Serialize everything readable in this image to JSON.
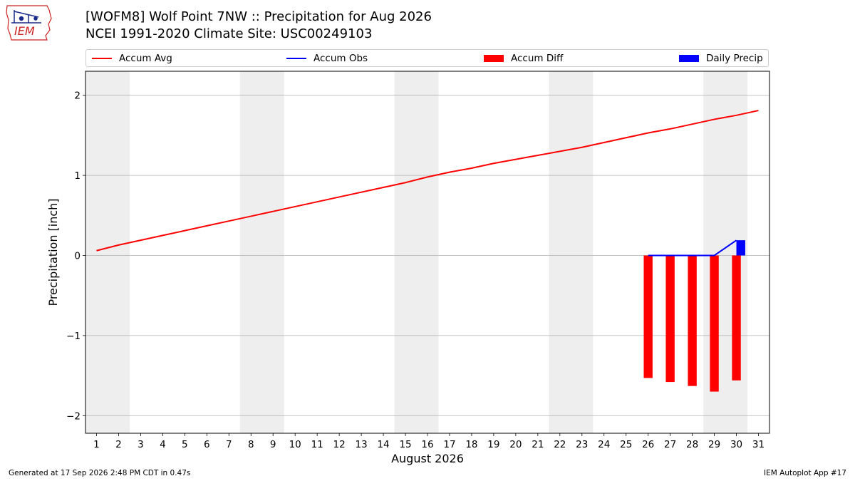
{
  "header": {
    "title_line1": "[WOFM8] Wolf Point 7NW :: Precipitation for Aug 2026",
    "title_line2": "NCEI 1991-2020 Climate Site: USC00249103",
    "logo_text": "IEM"
  },
  "footer": {
    "generated": "Generated at 17 Sep 2026 2:48 PM CDT in 0.47s",
    "app": "IEM Autoplot App #17"
  },
  "colors": {
    "avg": "#ff0000",
    "obs": "#0000ff",
    "diff": "#ff0000",
    "daily": "#0000ff",
    "weekend_shade": "#eeeeee",
    "grid": "#b0b0b0"
  },
  "chart_data": {
    "type": "line",
    "xlabel": "August 2026",
    "ylabel": "Precipitation [inch]",
    "xlim": [
      0.5,
      31.5
    ],
    "ylim": [
      -2.22,
      2.3
    ],
    "yticks": [
      -2,
      -1,
      0,
      1,
      2
    ],
    "ytick_labels": [
      "−2",
      "−1",
      "0",
      "1",
      "2"
    ],
    "xticks": [
      1,
      2,
      3,
      4,
      5,
      6,
      7,
      8,
      9,
      10,
      11,
      12,
      13,
      14,
      15,
      16,
      17,
      18,
      19,
      20,
      21,
      22,
      23,
      24,
      25,
      26,
      27,
      28,
      29,
      30,
      31
    ],
    "grid": "y",
    "legend": {
      "placement": "top",
      "entries": [
        "Accum Avg",
        "Accum Obs",
        "Accum Diff",
        "Daily Precip"
      ]
    },
    "shaded_day_ranges": [
      [
        0.5,
        2.5
      ],
      [
        7.5,
        9.5
      ],
      [
        14.5,
        16.5
      ],
      [
        21.5,
        23.5
      ],
      [
        28.5,
        30.5
      ]
    ],
    "series": [
      {
        "name": "Accum Avg",
        "type": "line",
        "x": [
          1,
          2,
          3,
          4,
          5,
          6,
          7,
          8,
          9,
          10,
          11,
          12,
          13,
          14,
          15,
          16,
          17,
          18,
          19,
          20,
          21,
          22,
          23,
          24,
          25,
          26,
          27,
          28,
          29,
          30,
          31
        ],
        "values": [
          0.06,
          0.13,
          0.19,
          0.25,
          0.31,
          0.37,
          0.43,
          0.49,
          0.55,
          0.61,
          0.67,
          0.73,
          0.79,
          0.85,
          0.91,
          0.98,
          1.04,
          1.09,
          1.15,
          1.2,
          1.25,
          1.3,
          1.35,
          1.41,
          1.47,
          1.53,
          1.58,
          1.64,
          1.7,
          1.75,
          1.81
        ]
      },
      {
        "name": "Accum Obs",
        "type": "line",
        "x": [
          26,
          27,
          28,
          29,
          30
        ],
        "values": [
          0.0,
          0.0,
          0.0,
          0.0,
          0.19
        ]
      },
      {
        "name": "Accum Diff",
        "type": "bar",
        "x": [
          26,
          27,
          28,
          29,
          30
        ],
        "values": [
          -1.53,
          -1.58,
          -1.63,
          -1.7,
          -1.56
        ]
      },
      {
        "name": "Daily Precip",
        "type": "bar",
        "x": [
          30
        ],
        "values": [
          0.19
        ]
      }
    ]
  }
}
